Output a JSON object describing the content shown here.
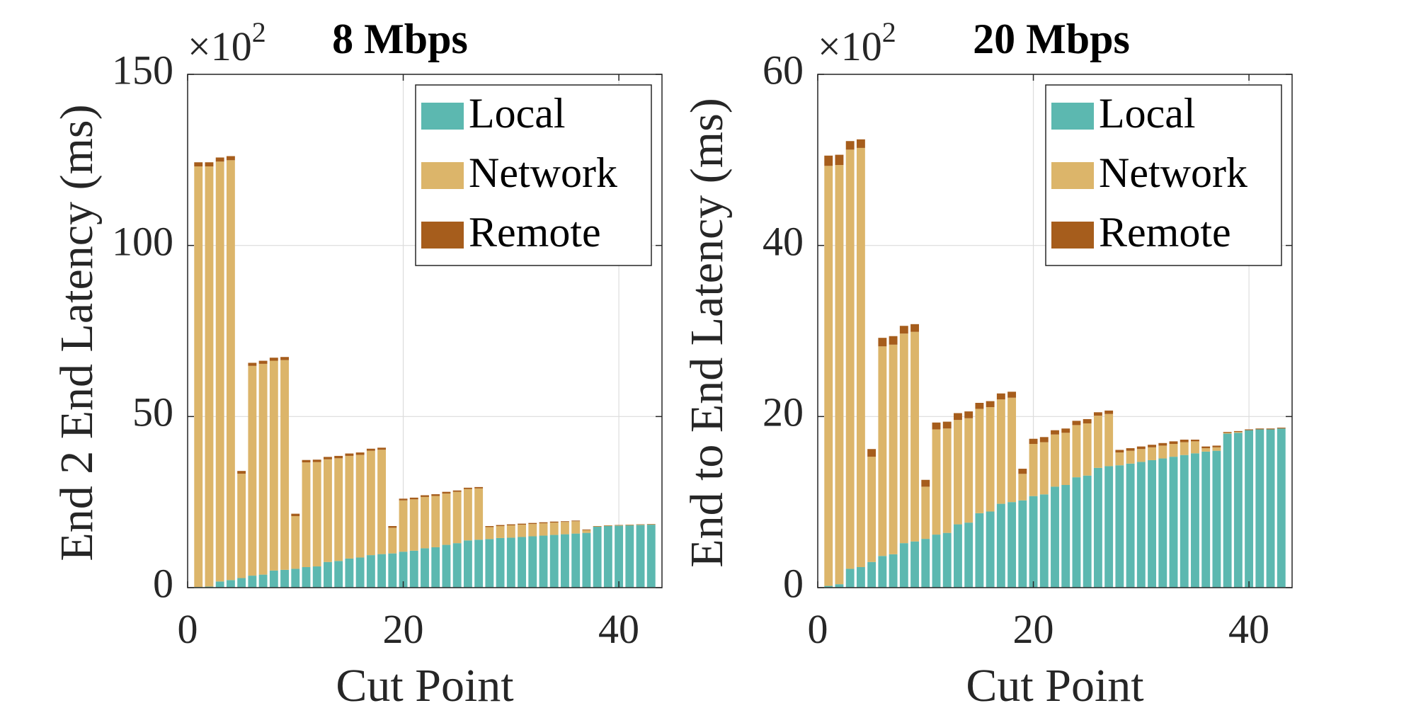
{
  "colors": {
    "local": "#5cb8b0",
    "network": "#dcb56a",
    "remote": "#a65d1c",
    "axis": "#262626",
    "grid": "#dcdcdc"
  },
  "chart_data": [
    {
      "type": "bar",
      "stacked": true,
      "title": "8 Mbps",
      "exponent_label": "×10",
      "exponent_power": "2",
      "xlabel": "Cut Point",
      "ylabel": "End 2 End Latency (ms)",
      "xlim": [
        0,
        44
      ],
      "ylim": [
        0,
        150
      ],
      "xticks": [
        "0",
        "20",
        "40"
      ],
      "yticks": [
        "0",
        "50",
        "100",
        "150"
      ],
      "legend": {
        "position": "top-right",
        "entries": [
          "Local",
          "Network",
          "Remote"
        ]
      },
      "x": [
        1,
        2,
        3,
        4,
        5,
        6,
        7,
        8,
        9,
        10,
        11,
        12,
        13,
        14,
        15,
        16,
        17,
        18,
        19,
        20,
        21,
        22,
        23,
        24,
        25,
        26,
        27,
        28,
        29,
        30,
        31,
        32,
        33,
        34,
        35,
        36,
        37,
        38,
        39,
        40,
        41,
        42,
        43
      ],
      "series": [
        {
          "name": "Local",
          "values": [
            0.2,
            0.3,
            1.8,
            2.2,
            2.8,
            3.5,
            3.8,
            5.0,
            5.2,
            5.5,
            6.0,
            6.2,
            7.5,
            7.8,
            8.5,
            8.8,
            9.5,
            9.8,
            10.0,
            10.5,
            10.8,
            11.5,
            11.8,
            12.5,
            13.0,
            13.8,
            14.0,
            14.2,
            14.5,
            14.6,
            14.8,
            15.0,
            15.2,
            15.4,
            15.6,
            15.8,
            16.0,
            17.8,
            18.0,
            18.1,
            18.2,
            18.3,
            18.4
          ]
        },
        {
          "name": "Network",
          "values": [
            122.9,
            122.8,
            122.7,
            122.7,
            30.5,
            61.3,
            61.6,
            61.3,
            61.3,
            15.4,
            30.6,
            30.5,
            30.0,
            30.0,
            30.0,
            30.0,
            30.5,
            30.5,
            7.5,
            15.0,
            15.0,
            15.0,
            15.0,
            15.0,
            15.0,
            15.0,
            15.0,
            3.5,
            3.5,
            3.6,
            3.6,
            3.6,
            3.6,
            3.6,
            3.6,
            3.6,
            0.8,
            0.1,
            0.1,
            0.1,
            0.1,
            0.1,
            0.1
          ]
        },
        {
          "name": "Remote",
          "values": [
            1.2,
            1.2,
            1.2,
            1.2,
            0.8,
            0.9,
            0.9,
            0.9,
            0.9,
            0.7,
            0.7,
            0.7,
            0.7,
            0.7,
            0.7,
            0.7,
            0.6,
            0.6,
            0.5,
            0.5,
            0.5,
            0.5,
            0.5,
            0.5,
            0.4,
            0.4,
            0.4,
            0.3,
            0.3,
            0.3,
            0.3,
            0.3,
            0.3,
            0.3,
            0.2,
            0.2,
            0.2,
            0.1,
            0.1,
            0.1,
            0.1,
            0.1,
            0.1
          ]
        }
      ]
    },
    {
      "type": "bar",
      "stacked": true,
      "title": "20 Mbps",
      "exponent_label": "×10",
      "exponent_power": "2",
      "xlabel": "Cut Point",
      "ylabel": "End to End Latency (ms)",
      "xlim": [
        0,
        44
      ],
      "ylim": [
        0,
        60
      ],
      "xticks": [
        "0",
        "20",
        "40"
      ],
      "yticks": [
        "0",
        "20",
        "40",
        "60"
      ],
      "legend": {
        "position": "top-right",
        "entries": [
          "Local",
          "Network",
          "Remote"
        ]
      },
      "x": [
        1,
        2,
        3,
        4,
        5,
        6,
        7,
        8,
        9,
        10,
        11,
        12,
        13,
        14,
        15,
        16,
        17,
        18,
        19,
        20,
        21,
        22,
        23,
        24,
        25,
        26,
        27,
        28,
        29,
        30,
        31,
        32,
        33,
        34,
        35,
        36,
        37,
        38,
        39,
        40,
        41,
        42,
        43
      ],
      "series": [
        {
          "name": "Local",
          "values": [
            0.2,
            0.4,
            2.2,
            2.4,
            3.0,
            3.7,
            3.9,
            5.2,
            5.4,
            5.7,
            6.2,
            6.4,
            7.4,
            7.6,
            8.7,
            8.9,
            9.8,
            10.0,
            10.2,
            10.7,
            10.9,
            11.8,
            12.0,
            12.9,
            13.1,
            14.0,
            14.2,
            14.3,
            14.5,
            14.7,
            14.9,
            15.1,
            15.3,
            15.5,
            15.7,
            15.9,
            16.0,
            18.0,
            18.1,
            18.4,
            18.5,
            18.5,
            18.6
          ]
        },
        {
          "name": "Network",
          "values": [
            49.1,
            49.0,
            49.0,
            49.0,
            12.3,
            24.5,
            24.5,
            24.5,
            24.5,
            6.1,
            12.3,
            12.2,
            12.2,
            12.2,
            12.2,
            12.2,
            12.2,
            12.2,
            3.1,
            6.1,
            6.1,
            6.1,
            6.1,
            6.1,
            6.1,
            6.1,
            6.1,
            1.5,
            1.5,
            1.5,
            1.5,
            1.5,
            1.5,
            1.5,
            1.4,
            0.4,
            0.4,
            0.1,
            0.1,
            0.0,
            0.0,
            0.0,
            0.0
          ]
        },
        {
          "name": "Remote",
          "values": [
            1.2,
            1.2,
            1.0,
            1.0,
            0.9,
            1.0,
            1.0,
            0.9,
            0.9,
            0.8,
            0.8,
            0.8,
            0.8,
            0.8,
            0.7,
            0.7,
            0.7,
            0.7,
            0.6,
            0.6,
            0.6,
            0.5,
            0.5,
            0.5,
            0.5,
            0.4,
            0.4,
            0.3,
            0.3,
            0.3,
            0.3,
            0.3,
            0.3,
            0.3,
            0.2,
            0.2,
            0.2,
            0.1,
            0.1,
            0.1,
            0.1,
            0.1,
            0.1
          ]
        }
      ]
    }
  ]
}
